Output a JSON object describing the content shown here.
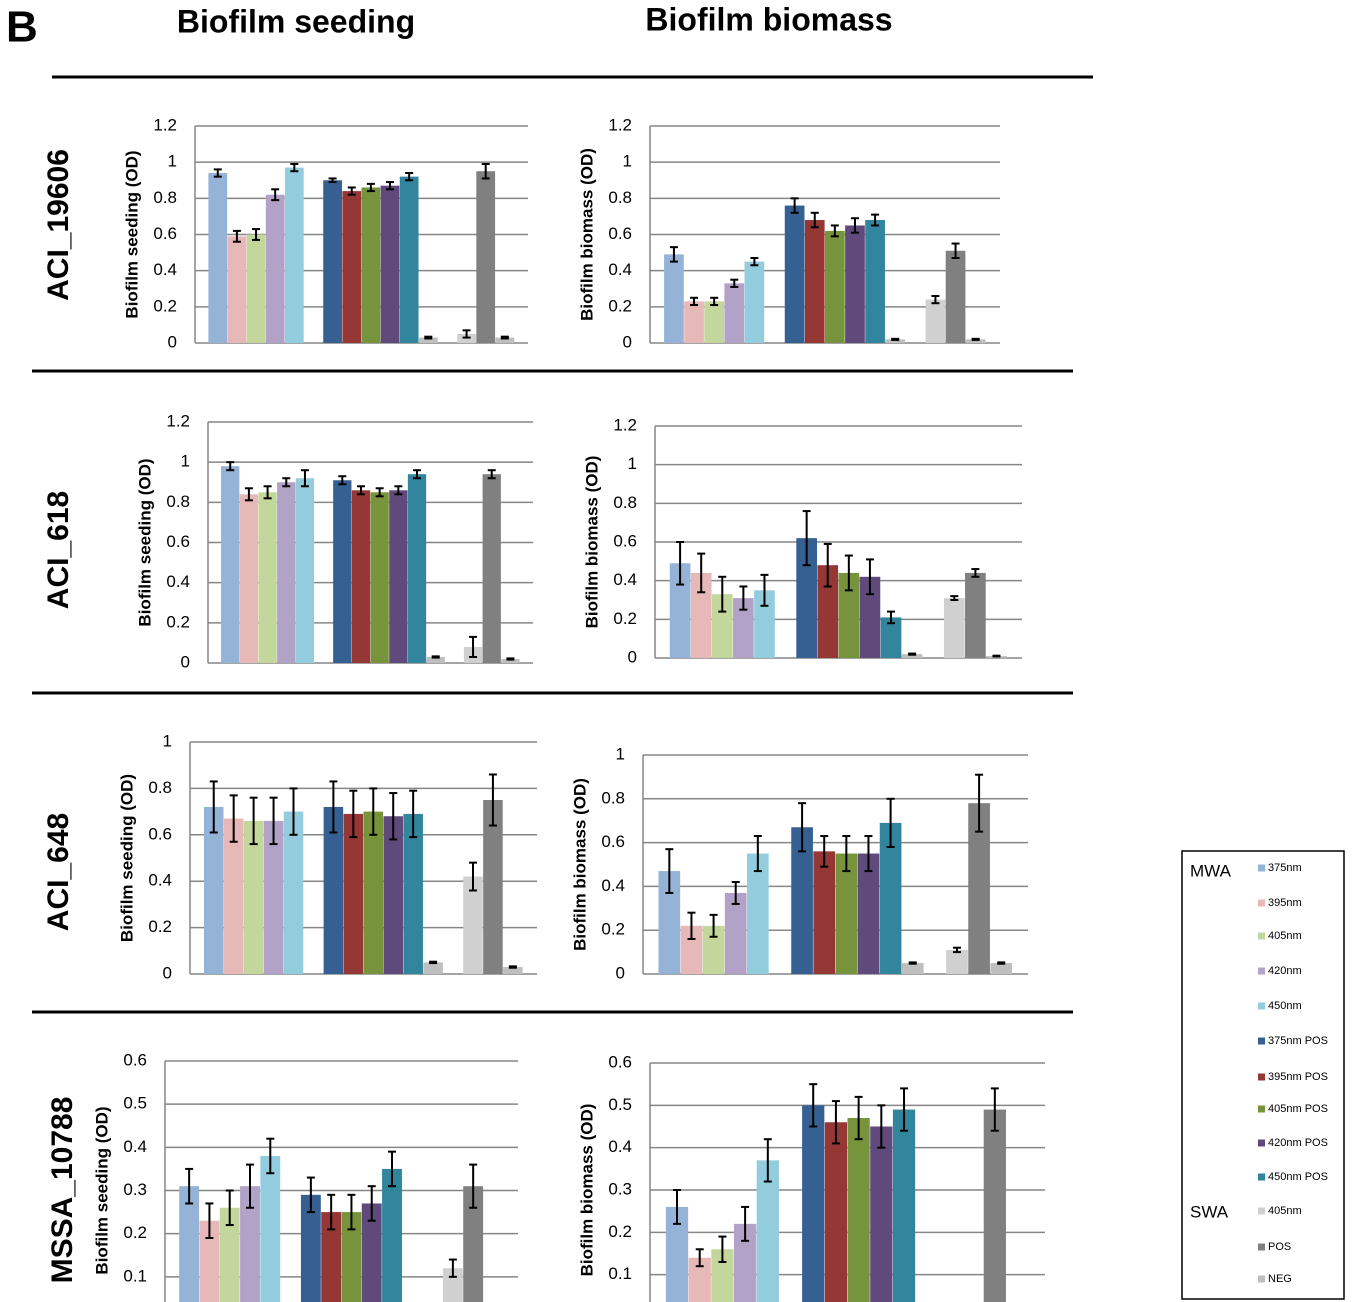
{
  "panel_label": "B",
  "column_titles": [
    "Biofilm seeding",
    "Biofilm biomass"
  ],
  "row_labels": [
    "ACI_19606",
    "ACI_618",
    "ACI_648",
    "MSSA_10788"
  ],
  "bar_colors": [
    "#95b3d7",
    "#e6b9b8",
    "#c3d69b",
    "#b3a2c7",
    "#93cddd",
    "#366092",
    "#953735",
    "#77933c",
    "#604a7b",
    "#31859c",
    "#bfbfbf",
    "#d0d0d0",
    "#808080",
    "#bfbfbf"
  ],
  "legend": {
    "groups": [
      {
        "title": "MWA",
        "items": [
          {
            "name": "375nm",
            "color": "#95b3d7"
          },
          {
            "name": "395nm",
            "color": "#e6b9b8"
          },
          {
            "name": "405nm",
            "color": "#c3d69b"
          },
          {
            "name": "420nm",
            "color": "#b3a2c7"
          },
          {
            "name": "450nm",
            "color": "#93cddd"
          },
          {
            "name": "375nm POS",
            "color": "#366092"
          },
          {
            "name": "395nm POS",
            "color": "#953735"
          },
          {
            "name": "405nm POS",
            "color": "#77933c"
          },
          {
            "name": "420nm POS",
            "color": "#604a7b"
          },
          {
            "name": "450nm POS",
            "color": "#31859c"
          }
        ]
      },
      {
        "title": "SWA",
        "items": [
          {
            "name": "405nm",
            "color": "#d0d0d0"
          },
          {
            "name": "POS",
            "color": "#808080"
          },
          {
            "name": "NEG",
            "color": "#bfbfbf"
          }
        ]
      }
    ]
  },
  "chart_data": [
    {
      "type": "bar",
      "y_label": "Biofilm seeding (OD)",
      "ylim": [
        0,
        1.2
      ],
      "yticks": [
        0,
        0.2,
        0.4,
        0.6,
        0.8,
        1,
        1.2
      ],
      "grid": true,
      "values": [
        0.94,
        0.59,
        0.6,
        0.82,
        0.97,
        0.9,
        0.84,
        0.86,
        0.87,
        0.92,
        0.03,
        0.05,
        0.95,
        0.03
      ],
      "errors": [
        0.02,
        0.03,
        0.03,
        0.03,
        0.02,
        0.01,
        0.02,
        0.02,
        0.02,
        0.02,
        0.005,
        0.02,
        0.04,
        0.005
      ]
    },
    {
      "type": "bar",
      "y_label": "Biofilm  biomass (OD)",
      "ylim": [
        0,
        1.2
      ],
      "yticks": [
        0,
        0.2,
        0.4,
        0.6,
        0.8,
        1,
        1.2
      ],
      "grid": true,
      "values": [
        0.49,
        0.23,
        0.23,
        0.33,
        0.45,
        0.76,
        0.68,
        0.62,
        0.65,
        0.68,
        0.02,
        0.24,
        0.51,
        0.02
      ],
      "errors": [
        0.04,
        0.02,
        0.02,
        0.02,
        0.02,
        0.04,
        0.04,
        0.03,
        0.04,
        0.03,
        0.003,
        0.02,
        0.04,
        0.003
      ]
    },
    {
      "type": "bar",
      "y_label": "Biofilm seeding (OD)",
      "ylim": [
        0,
        1.2
      ],
      "yticks": [
        0,
        0.2,
        0.4,
        0.6,
        0.8,
        1,
        1.2
      ],
      "grid": true,
      "values": [
        0.98,
        0.84,
        0.85,
        0.9,
        0.92,
        0.91,
        0.86,
        0.85,
        0.86,
        0.94,
        0.03,
        0.08,
        0.94,
        0.02
      ],
      "errors": [
        0.02,
        0.03,
        0.03,
        0.02,
        0.04,
        0.02,
        0.02,
        0.02,
        0.02,
        0.02,
        0.003,
        0.05,
        0.02,
        0.003
      ]
    },
    {
      "type": "bar",
      "y_label": "Biofilm biomass (OD)",
      "ylim": [
        0,
        1.2
      ],
      "yticks": [
        0,
        0.2,
        0.4,
        0.6,
        0.8,
        1,
        1.2
      ],
      "grid": true,
      "values": [
        0.49,
        0.44,
        0.33,
        0.31,
        0.35,
        0.62,
        0.48,
        0.44,
        0.42,
        0.21,
        0.02,
        0.31,
        0.44,
        0.01
      ],
      "errors": [
        0.11,
        0.1,
        0.09,
        0.06,
        0.08,
        0.14,
        0.11,
        0.09,
        0.09,
        0.03,
        0.003,
        0.01,
        0.02,
        0.002
      ]
    },
    {
      "type": "bar",
      "y_label": "Biofilm seeding (OD)",
      "ylim": [
        0,
        1
      ],
      "yticks": [
        0,
        0.2,
        0.4,
        0.6,
        0.8,
        1
      ],
      "grid": true,
      "values": [
        0.72,
        0.67,
        0.66,
        0.66,
        0.7,
        0.72,
        0.69,
        0.7,
        0.68,
        0.69,
        0.05,
        0.42,
        0.75,
        0.03
      ],
      "errors": [
        0.11,
        0.1,
        0.1,
        0.1,
        0.1,
        0.11,
        0.1,
        0.1,
        0.1,
        0.1,
        0.003,
        0.06,
        0.11,
        0.003
      ]
    },
    {
      "type": "bar",
      "y_label": "Biofilm biomass (OD)",
      "ylim": [
        0,
        1
      ],
      "yticks": [
        0,
        0.2,
        0.4,
        0.6,
        0.8,
        1
      ],
      "grid": true,
      "values": [
        0.47,
        0.22,
        0.22,
        0.37,
        0.55,
        0.67,
        0.56,
        0.55,
        0.55,
        0.69,
        0.05,
        0.11,
        0.78,
        0.05
      ],
      "errors": [
        0.1,
        0.06,
        0.05,
        0.05,
        0.08,
        0.11,
        0.07,
        0.08,
        0.08,
        0.11,
        0.003,
        0.01,
        0.13,
        0.003
      ]
    },
    {
      "type": "bar",
      "y_label": "Biofilm seeding (OD)",
      "ylim": [
        0,
        0.6
      ],
      "yticks": [
        0.1,
        0.2,
        0.3,
        0.4,
        0.5,
        0.6
      ],
      "grid": true,
      "values": [
        0.31,
        0.23,
        0.26,
        0.31,
        0.38,
        0.29,
        0.25,
        0.25,
        0.27,
        0.35,
        null,
        0.12,
        0.31,
        null
      ],
      "errors": [
        0.04,
        0.04,
        0.04,
        0.05,
        0.04,
        0.04,
        0.04,
        0.04,
        0.04,
        0.04,
        null,
        0.02,
        0.05,
        null
      ]
    },
    {
      "type": "bar",
      "y_label": "Biofilm biomass (OD)",
      "ylim": [
        0,
        0.6
      ],
      "yticks": [
        0.1,
        0.2,
        0.3,
        0.4,
        0.5,
        0.6
      ],
      "grid": true,
      "values": [
        0.26,
        0.14,
        0.16,
        0.22,
        0.37,
        0.5,
        0.46,
        0.47,
        0.45,
        0.49,
        null,
        null,
        0.49,
        null
      ],
      "errors": [
        0.04,
        0.02,
        0.03,
        0.04,
        0.05,
        0.05,
        0.05,
        0.05,
        0.05,
        0.05,
        null,
        null,
        0.05,
        null
      ]
    }
  ]
}
